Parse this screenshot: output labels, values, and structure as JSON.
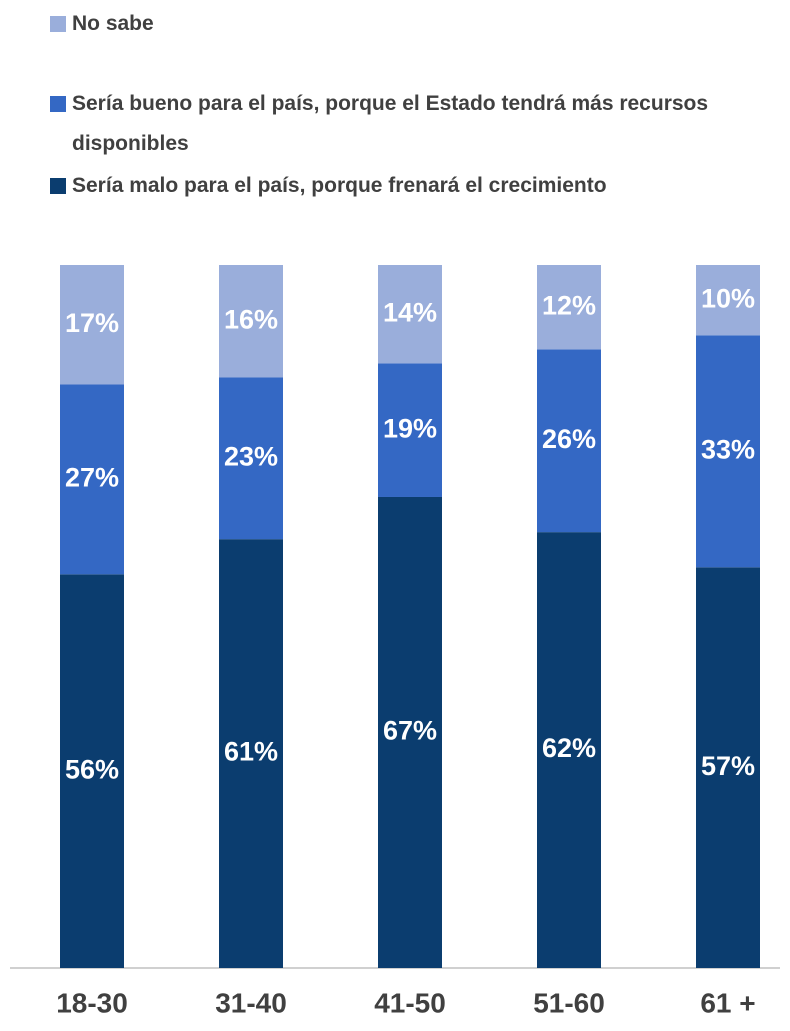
{
  "chart_data": {
    "type": "stacked_bar",
    "categories": [
      "18-30",
      "31-40",
      "41-50",
      "51-60",
      "61 +"
    ],
    "series": [
      {
        "name": "Sería malo para el país, porque frenará el crecimiento",
        "color": "#0b3d6f",
        "values": [
          56,
          61,
          67,
          62,
          57
        ],
        "value_labels": [
          "56%",
          "61%",
          "67%",
          "62%",
          "57%"
        ]
      },
      {
        "name": "Sería bueno para el país, porque el Estado tendrá más recursos disponibles",
        "color": "#3468c4",
        "values": [
          27,
          23,
          19,
          26,
          33
        ],
        "value_labels": [
          "27%",
          "23%",
          "19%",
          "26%",
          "33%"
        ]
      },
      {
        "name": "No sabe",
        "color": "#9aaedb",
        "values": [
          17,
          16,
          14,
          12,
          10
        ],
        "value_labels": [
          "17%",
          "16%",
          "14%",
          "12%",
          "10%"
        ]
      }
    ],
    "legend": "top"
  }
}
